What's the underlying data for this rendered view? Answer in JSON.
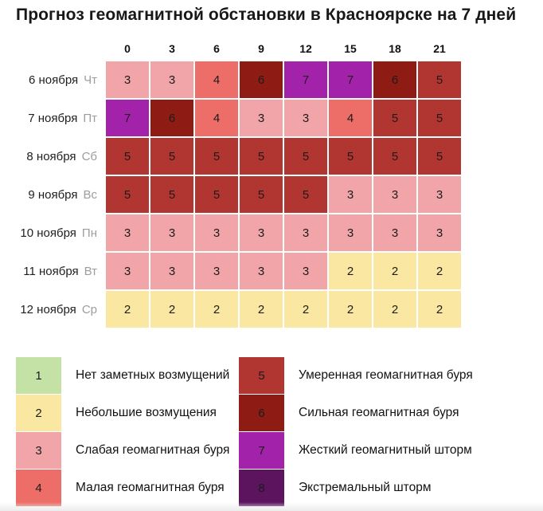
{
  "title": "Прогноз геомагнитной обстановки в Красноярске на 7 дней",
  "table": {
    "hours": [
      "0",
      "3",
      "6",
      "9",
      "12",
      "15",
      "18",
      "21"
    ],
    "rows": [
      {
        "date": "6 ноября",
        "weekday": "Чт",
        "values": [
          3,
          3,
          4,
          6,
          7,
          7,
          6,
          5
        ]
      },
      {
        "date": "7 ноября",
        "weekday": "Пт",
        "values": [
          7,
          6,
          4,
          3,
          3,
          4,
          5,
          5
        ]
      },
      {
        "date": "8 ноября",
        "weekday": "Сб",
        "values": [
          5,
          5,
          5,
          5,
          5,
          5,
          5,
          5
        ]
      },
      {
        "date": "9 ноября",
        "weekday": "Вс",
        "values": [
          5,
          5,
          5,
          5,
          5,
          3,
          3,
          3
        ]
      },
      {
        "date": "10 ноября",
        "weekday": "Пн",
        "values": [
          3,
          3,
          3,
          3,
          3,
          3,
          3,
          3
        ]
      },
      {
        "date": "11 ноября",
        "weekday": "Вт",
        "values": [
          3,
          3,
          3,
          3,
          3,
          2,
          2,
          2
        ]
      },
      {
        "date": "12 ноября",
        "weekday": "Ср",
        "values": [
          2,
          2,
          2,
          2,
          2,
          2,
          2,
          2
        ]
      }
    ]
  },
  "legend": {
    "left": [
      {
        "value": 1,
        "label": "Нет заметных возмущений"
      },
      {
        "value": 2,
        "label": "Небольшие возмущения"
      },
      {
        "value": 3,
        "label": "Слабая геомагнитная буря"
      },
      {
        "value": 4,
        "label": "Малая геомагнитная буря"
      }
    ],
    "right": [
      {
        "value": 5,
        "label": "Умеренная геомагнитная буря"
      },
      {
        "value": 6,
        "label": "Сильная геомагнитная буря"
      },
      {
        "value": 7,
        "label": "Жесткий геомагнитный шторм"
      },
      {
        "value": 8,
        "label": "Экстремальный шторм"
      }
    ]
  },
  "colors": {
    "1": "#c4e2a6",
    "2": "#f9e7a2",
    "3": "#f2a5a8",
    "4": "#ed6d68",
    "5": "#b13530",
    "6": "#8f1c14",
    "7": "#a322aa",
    "8": "#5c145f"
  },
  "chart_data": {
    "type": "heatmap",
    "title": "Прогноз геомагнитной обстановки в Красноярске на 7 дней",
    "xlabel": "Часы",
    "ylabel": "Дата",
    "x_categories": [
      "0",
      "3",
      "6",
      "9",
      "12",
      "15",
      "18",
      "21"
    ],
    "y_categories": [
      "6 ноября Чт",
      "7 ноября Пт",
      "8 ноября Сб",
      "9 ноября Вс",
      "10 ноября Пн",
      "11 ноября Вт",
      "12 ноября Ср"
    ],
    "values": [
      [
        3,
        3,
        4,
        6,
        7,
        7,
        6,
        5
      ],
      [
        7,
        6,
        4,
        3,
        3,
        4,
        5,
        5
      ],
      [
        5,
        5,
        5,
        5,
        5,
        5,
        5,
        5
      ],
      [
        5,
        5,
        5,
        5,
        5,
        3,
        3,
        3
      ],
      [
        3,
        3,
        3,
        3,
        3,
        3,
        3,
        3
      ],
      [
        3,
        3,
        3,
        3,
        3,
        2,
        2,
        2
      ],
      [
        2,
        2,
        2,
        2,
        2,
        2,
        2,
        2
      ]
    ],
    "value_range": [
      1,
      8
    ],
    "scale": [
      {
        "value": 1,
        "label": "Нет заметных возмущений",
        "color": "#c4e2a6"
      },
      {
        "value": 2,
        "label": "Небольшие возмущения",
        "color": "#f9e7a2"
      },
      {
        "value": 3,
        "label": "Слабая геомагнитная буря",
        "color": "#f2a5a8"
      },
      {
        "value": 4,
        "label": "Малая геомагнитная буря",
        "color": "#ed6d68"
      },
      {
        "value": 5,
        "label": "Умеренная геомагнитная буря",
        "color": "#b13530"
      },
      {
        "value": 6,
        "label": "Сильная геомагнитная буря",
        "color": "#8f1c14"
      },
      {
        "value": 7,
        "label": "Жесткий геомагнитный шторм",
        "color": "#a322aa"
      },
      {
        "value": 8,
        "label": "Экстремальный шторм",
        "color": "#5c145f"
      }
    ],
    "legend_position": "bottom",
    "grid": false
  }
}
